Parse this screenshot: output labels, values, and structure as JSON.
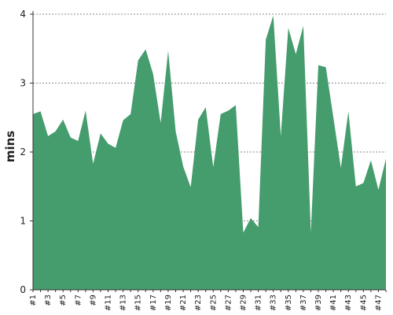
{
  "chart_data": {
    "type": "area",
    "title": "",
    "xlabel": "",
    "ylabel": "mins",
    "ylim": [
      0,
      4
    ],
    "yticks": [
      0,
      1,
      2,
      3,
      4
    ],
    "grid": true,
    "legend": "none",
    "colors": {
      "fill": "#459c6c",
      "grid": "#666666",
      "axis": "#333333"
    },
    "x": [
      "#1",
      "#2",
      "#3",
      "#4",
      "#5",
      "#6",
      "#7",
      "#8",
      "#9",
      "#10",
      "#11",
      "#12",
      "#13",
      "#14",
      "#15",
      "#16",
      "#17",
      "#18",
      "#19",
      "#20",
      "#21",
      "#22",
      "#23",
      "#24",
      "#25",
      "#26",
      "#27",
      "#28",
      "#29",
      "#30",
      "#31",
      "#32",
      "#33",
      "#34",
      "#35",
      "#36",
      "#37",
      "#38",
      "#39",
      "#40",
      "#41",
      "#42",
      "#43",
      "#44",
      "#45",
      "#46",
      "#47",
      "#48"
    ],
    "xtick_labels": [
      "#1",
      "#3",
      "#5",
      "#7",
      "#9",
      "#11",
      "#13",
      "#15",
      "#17",
      "#19",
      "#21",
      "#23",
      "#25",
      "#27",
      "#29",
      "#31",
      "#33",
      "#35",
      "#37",
      "#39",
      "#41",
      "#43",
      "#45",
      "#47"
    ],
    "series": [
      {
        "values": [
          2.55,
          2.59,
          2.23,
          2.3,
          2.47,
          2.21,
          2.16,
          2.6,
          1.83,
          2.27,
          2.12,
          2.06,
          2.46,
          2.55,
          3.33,
          3.49,
          3.13,
          2.42,
          3.47,
          2.3,
          1.79,
          1.49,
          2.47,
          2.65,
          1.78,
          2.55,
          2.6,
          2.68,
          0.83,
          1.04,
          0.91,
          3.63,
          3.98,
          2.23,
          3.8,
          3.42,
          3.83,
          0.83,
          3.26,
          3.23,
          2.5,
          1.77,
          2.59,
          1.5,
          1.55,
          1.88,
          1.45,
          1.9
        ]
      }
    ]
  }
}
